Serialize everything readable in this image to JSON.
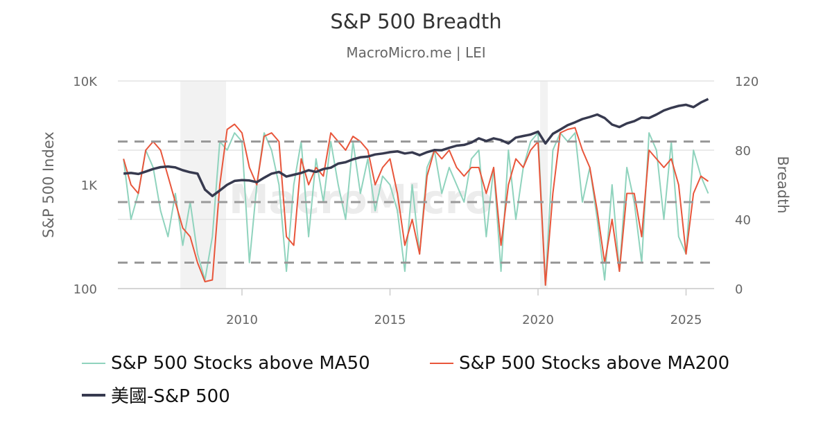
{
  "chart_data": {
    "type": "line",
    "title": "S&P 500 Breadth",
    "subtitle": "MacroMicro.me | LEI",
    "watermark": "MacroMicro",
    "x_start": 2006.0,
    "x_step": 0.25,
    "xlim": [
      2006.0,
      2025.85
    ],
    "x_ticks": [
      "2010",
      "2015",
      "2020",
      "2025"
    ],
    "left_axis": {
      "label": "S&P 500 Index",
      "scale": "log",
      "range": [
        100,
        10000
      ],
      "ticks": [
        "100",
        "1K",
        "10K"
      ]
    },
    "right_axis": {
      "label": "Breadth",
      "range": [
        0,
        120
      ],
      "ticks": [
        "0",
        "40",
        "80",
        "120"
      ]
    },
    "reference_lines": [
      85,
      50,
      15
    ],
    "recessions": [
      [
        2007.92,
        2009.46
      ],
      [
        2020.07,
        2020.33
      ]
    ],
    "grid": true,
    "legend_position": "bottom",
    "series": [
      {
        "name": "S&P 500 Stocks above MA50",
        "axis": "right",
        "color": "#8fd3bd",
        "values": [
          75,
          40,
          55,
          80,
          70,
          45,
          30,
          55,
          25,
          50,
          20,
          5,
          30,
          85,
          80,
          90,
          85,
          15,
          60,
          90,
          80,
          60,
          10,
          60,
          85,
          30,
          75,
          50,
          85,
          60,
          40,
          85,
          55,
          75,
          45,
          65,
          60,
          45,
          10,
          60,
          20,
          70,
          80,
          55,
          70,
          60,
          50,
          75,
          80,
          30,
          70,
          10,
          80,
          40,
          70,
          85,
          90,
          2,
          80,
          90,
          85,
          90,
          50,
          70,
          40,
          5,
          60,
          10,
          70,
          50,
          15,
          90,
          80,
          40,
          85,
          30,
          20,
          80,
          65,
          55
        ]
      },
      {
        "name": "S&P 500 Stocks above MA200",
        "axis": "right",
        "color": "#e8553a",
        "values": [
          75,
          60,
          55,
          80,
          85,
          80,
          65,
          50,
          35,
          30,
          15,
          4,
          5,
          60,
          92,
          95,
          90,
          70,
          60,
          88,
          90,
          85,
          30,
          25,
          75,
          60,
          70,
          65,
          90,
          85,
          80,
          88,
          85,
          80,
          60,
          70,
          75,
          55,
          25,
          40,
          20,
          65,
          80,
          75,
          80,
          70,
          65,
          70,
          70,
          55,
          70,
          25,
          60,
          75,
          70,
          80,
          85,
          2,
          55,
          90,
          92,
          93,
          80,
          70,
          45,
          15,
          40,
          10,
          55,
          55,
          30,
          80,
          75,
          70,
          75,
          60,
          20,
          55,
          65,
          62
        ]
      },
      {
        "name": "美國-S&P 500",
        "axis": "left",
        "color": "#373a4f",
        "values": [
          1280,
          1300,
          1270,
          1340,
          1420,
          1480,
          1500,
          1470,
          1380,
          1320,
          1280,
          900,
          780,
          880,
          1000,
          1090,
          1110,
          1100,
          1060,
          1170,
          1280,
          1330,
          1200,
          1250,
          1300,
          1380,
          1330,
          1420,
          1460,
          1600,
          1650,
          1760,
          1840,
          1870,
          1960,
          2000,
          2060,
          2100,
          2000,
          2050,
          1930,
          2060,
          2160,
          2150,
          2270,
          2380,
          2420,
          2550,
          2800,
          2640,
          2800,
          2700,
          2500,
          2850,
          2950,
          3050,
          3250,
          2500,
          3100,
          3400,
          3750,
          4000,
          4300,
          4500,
          4750,
          4400,
          3800,
          3600,
          3900,
          4100,
          4450,
          4400,
          4750,
          5200,
          5500,
          5750,
          5900,
          5600,
          6200,
          6700
        ]
      }
    ]
  }
}
